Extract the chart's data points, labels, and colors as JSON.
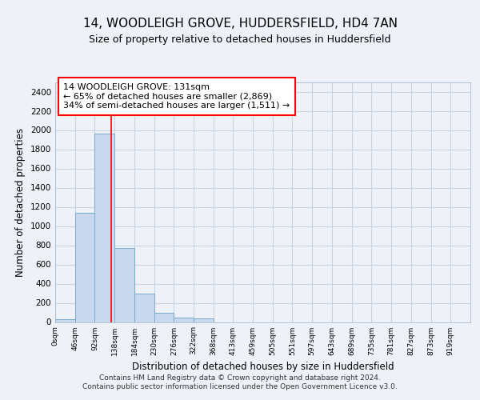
{
  "title1": "14, WOODLEIGH GROVE, HUDDERSFIELD, HD4 7AN",
  "title2": "Size of property relative to detached houses in Huddersfield",
  "xlabel": "Distribution of detached houses by size in Huddersfield",
  "ylabel": "Number of detached properties",
  "bin_edges": [
    0,
    46,
    92,
    138,
    184,
    230,
    276,
    322,
    368,
    413,
    459,
    505,
    551,
    597,
    643,
    689,
    735,
    781,
    827,
    873,
    919
  ],
  "bar_heights": [
    30,
    1140,
    1960,
    770,
    295,
    100,
    45,
    35,
    0,
    0,
    0,
    0,
    0,
    0,
    0,
    0,
    0,
    0,
    0,
    0
  ],
  "bar_color": "#c8d8ee",
  "bar_edge_color": "#7aabcc",
  "red_line_x": 131,
  "ylim": [
    0,
    2500
  ],
  "yticks": [
    0,
    200,
    400,
    600,
    800,
    1000,
    1200,
    1400,
    1600,
    1800,
    2000,
    2200,
    2400
  ],
  "annotation_box_text": "14 WOODLEIGH GROVE: 131sqm\n← 65% of detached houses are smaller (2,869)\n34% of semi-detached houses are larger (1,511) →",
  "footnote1": "Contains HM Land Registry data © Crown copyright and database right 2024.",
  "footnote2": "Contains public sector information licensed under the Open Government Licence v3.0.",
  "tick_labels": [
    "0sqm",
    "46sqm",
    "92sqm",
    "138sqm",
    "184sqm",
    "230sqm",
    "276sqm",
    "322sqm",
    "368sqm",
    "413sqm",
    "459sqm",
    "505sqm",
    "551sqm",
    "597sqm",
    "643sqm",
    "689sqm",
    "735sqm",
    "781sqm",
    "827sqm",
    "873sqm",
    "919sqm"
  ],
  "bg_color": "#eef2f8",
  "grid_color": "#c8d4e4",
  "plot_bg": "#eef2f8"
}
